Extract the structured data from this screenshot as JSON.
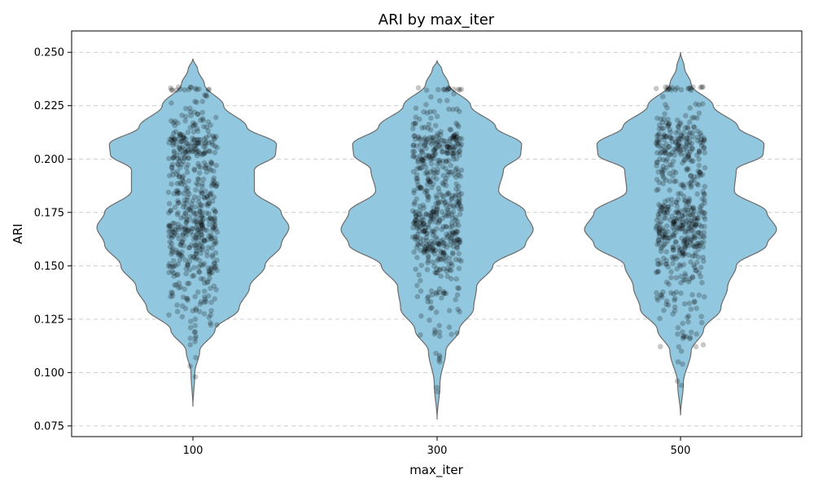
{
  "chart_data": {
    "type": "violin",
    "title": "ARI by max_iter",
    "xlabel": "max_iter",
    "ylabel": "ARI",
    "categories": [
      "100",
      "300",
      "500"
    ],
    "ylim": [
      0.07,
      0.26
    ],
    "yticks": [
      0.075,
      0.1,
      0.125,
      0.15,
      0.175,
      0.2,
      0.225,
      0.25
    ],
    "ytick_labels": [
      "0.075",
      "0.100",
      "0.125",
      "0.150",
      "0.175",
      "0.200",
      "0.225",
      "0.250"
    ],
    "grid": "y-dashed",
    "colors": {
      "violin_fill": "#92c8df",
      "violin_edge": "#6b6b6b",
      "points": "#000000",
      "grid": "#cccccc"
    },
    "series": [
      {
        "category": "100",
        "min": 0.084,
        "max": 0.247,
        "profile": [
          [
            0.084,
            0.0
          ],
          [
            0.1,
            0.02
          ],
          [
            0.11,
            0.07
          ],
          [
            0.12,
            0.23
          ],
          [
            0.13,
            0.48
          ],
          [
            0.14,
            0.59
          ],
          [
            0.15,
            0.75
          ],
          [
            0.16,
            0.92
          ],
          [
            0.168,
            1.0
          ],
          [
            0.175,
            0.92
          ],
          [
            0.185,
            0.64
          ],
          [
            0.195,
            0.64
          ],
          [
            0.202,
            0.86
          ],
          [
            0.207,
            0.87
          ],
          [
            0.215,
            0.56
          ],
          [
            0.225,
            0.32
          ],
          [
            0.235,
            0.12
          ],
          [
            0.242,
            0.05
          ],
          [
            0.247,
            0.0
          ]
        ],
        "outliers": [
          [
            0.103,
            -0.12
          ],
          [
            0.098,
            0.11
          ],
          [
            0.107,
            0.12
          ],
          [
            0.113,
            -0.11
          ],
          [
            0.116,
            0.11
          ],
          [
            0.116,
            -0.11
          ],
          [
            0.117,
            0.12
          ],
          [
            0.119,
            0.08
          ],
          [
            0.121,
            -0.1
          ],
          [
            0.122,
            0.09
          ],
          [
            0.124,
            -0.09
          ],
          [
            0.125,
            0.1
          ]
        ]
      },
      {
        "category": "300",
        "min": 0.078,
        "max": 0.246,
        "profile": [
          [
            0.078,
            0.0
          ],
          [
            0.095,
            0.03
          ],
          [
            0.11,
            0.09
          ],
          [
            0.12,
            0.23
          ],
          [
            0.13,
            0.38
          ],
          [
            0.14,
            0.41
          ],
          [
            0.15,
            0.58
          ],
          [
            0.16,
            0.92
          ],
          [
            0.167,
            1.0
          ],
          [
            0.175,
            0.92
          ],
          [
            0.185,
            0.64
          ],
          [
            0.195,
            0.69
          ],
          [
            0.202,
            0.87
          ],
          [
            0.207,
            0.88
          ],
          [
            0.215,
            0.61
          ],
          [
            0.225,
            0.35
          ],
          [
            0.235,
            0.12
          ],
          [
            0.242,
            0.05
          ],
          [
            0.246,
            0.0
          ]
        ],
        "outliers": [
          [
            0.091,
            0.02
          ],
          [
            0.093,
            -0.01
          ],
          [
            0.105,
            0.11
          ],
          [
            0.106,
            0.08
          ],
          [
            0.107,
            0.11
          ],
          [
            0.108,
            0.1
          ],
          [
            0.109,
            -0.05
          ],
          [
            0.117,
            0.11
          ],
          [
            0.118,
            -0.11
          ],
          [
            0.119,
            0.1
          ],
          [
            0.12,
            -0.09
          ],
          [
            0.122,
            0.09
          ]
        ]
      },
      {
        "category": "500",
        "min": 0.08,
        "max": 0.25,
        "profile": [
          [
            0.08,
            0.0
          ],
          [
            0.095,
            0.03
          ],
          [
            0.11,
            0.11
          ],
          [
            0.12,
            0.24
          ],
          [
            0.13,
            0.42
          ],
          [
            0.14,
            0.49
          ],
          [
            0.15,
            0.58
          ],
          [
            0.16,
            0.9
          ],
          [
            0.167,
            1.0
          ],
          [
            0.175,
            0.9
          ],
          [
            0.185,
            0.56
          ],
          [
            0.195,
            0.58
          ],
          [
            0.202,
            0.86
          ],
          [
            0.207,
            0.87
          ],
          [
            0.215,
            0.6
          ],
          [
            0.225,
            0.34
          ],
          [
            0.235,
            0.11
          ],
          [
            0.243,
            0.04
          ],
          [
            0.25,
            0.0
          ]
        ],
        "outliers": [
          [
            0.096,
            -0.13
          ],
          [
            0.094,
            0.03
          ],
          [
            0.104,
            0.08
          ],
          [
            0.105,
            -0.1
          ],
          [
            0.11,
            0.04
          ],
          [
            0.112,
            -0.07
          ],
          [
            0.116,
            0.1
          ],
          [
            0.117,
            0.11
          ],
          [
            0.118,
            -0.12
          ],
          [
            0.119,
            0.08
          ],
          [
            0.121,
            -0.1
          ],
          [
            0.123,
            0.09
          ]
        ]
      }
    ],
    "points_per_violin": 560
  }
}
